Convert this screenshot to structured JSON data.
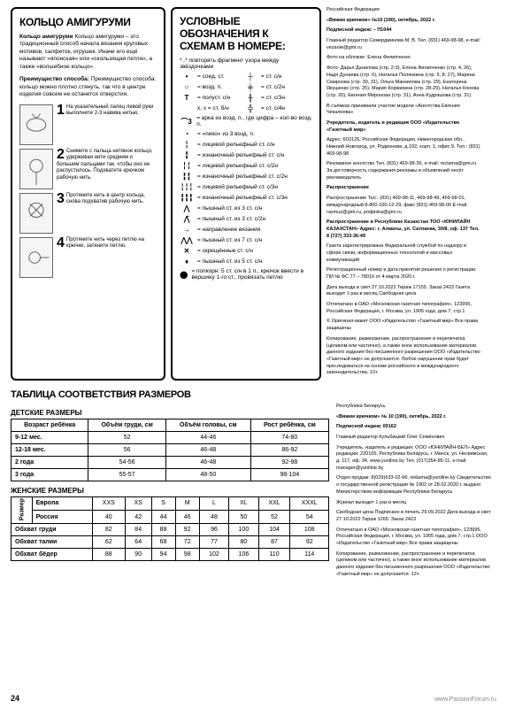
{
  "ring": {
    "title": "КОЛЬЦО АМИГУРУМИ",
    "intro1": "Кольцо амигуруми – это традиционный способ начала вязания круговых мотивов, салфеток, игрушек. Иначе его ещё называют «японская» или «скользящая петля», а также «волшебное кольцо».",
    "intro2": "Преимущество способа: кольцо можно плотно стянуть, так что в центре изделия совсем не останется отверстия.",
    "s1": "На указательный палец левой руки выполните 2-3 навива нитью.",
    "s2": "Снимите с пальца нитяное кольцо, удерживая нити средним и большим пальцами так, чтобы оно не распустилось. Подхватите крючком рабочую нить.",
    "s3": "Протяните нить в центр кольца, снова подхватив рабочую нить.",
    "s4": "Протяните нить через петлю на крючке, затяните петлю."
  },
  "legend": {
    "title": "УСЛОВНЫЕ ОБОЗНАЧЕНИЯ К СХЕМАМ В НОМЕРЕ:",
    "repeat": "*..* повторять фрагмент узора между звёздочками",
    "r1a": "= соед. ст.",
    "r1b": "= ст. с/н",
    "r2a": "= возд. п.",
    "r2b": "= ст. с/2н",
    "r3a": "= полуст. с/н",
    "r3b": "= ст. с/3н",
    "r4a": "x, v = ст. б/н",
    "r4b": "= ст. с/4н",
    "r5": "= арка из возд. п., где цифра – кол-во возд. п.",
    "r6": "= «пико» из 3 возд. п.",
    "r7": "= лицевой рельефный ст. с/н",
    "r8": "= изнаночный рельефный ст. с/н",
    "r9": "= лицевой рельефный ст. с/2н",
    "r10": "= изнаночный рельефный ст. с/2н",
    "r11": "= лицевой рельефный ст. с/3н",
    "r12": "= изнаночный рельефный ст. с/3н",
    "r13": "= пышный ст. из 3 ст. с/н",
    "r14": "= пышный ст. из 3 ст. с/2н",
    "r15": "= направление вязания",
    "r16": "= пышный ст. из 7 ст. с/н",
    "r17": "= скрещённые ст. с/н",
    "r18": "= пышный ст. из 5 ст. с/н",
    "r19": "= попкорн: 5 ст. с/н в 1 п., крючок ввести в вершину 1-го ст., провязать петлю"
  },
  "pub": {
    "p1": "Российская Федерация",
    "p2": "«Вяжем крючком» №10 (190), октябрь, 2022 г.",
    "p3": "Подписной индекс – П1044",
    "p4": "Главный редактор Семерджинова М. В. Тел. (831) 469-98-98, e-mail: vezanie@gmi.ru",
    "p5": "Фото на обложке: Елена Филипченко",
    "p6": "Фото: Дарья Данилова (стр. 2-3), Елена Филипченко (стр. 4, 26), Надя Дунаева (стр. 6), Наталья Полянкина (стр. 5, 8, 27), Марина Смирнова (стр. 30, 31), Ольга Манкилова (стр. 29), Екатерина Якушенко (стр. 25), Мария Коржихина (стр. 28-29), Наталья Конова (стр. 20), Евгения Миронова (стр. 31), Анна Кудряшова (стр. 31)",
    "p7": "В съёмках принимали участие модели «Агентства Евгения Чекалеева»",
    "p8": "Учредитель, издатель и редакция ООО «Издательство «Газетный мир»",
    "p9": "Адрес: 603126, Российская Федерация, Нижегородская обл., Нижний Новгород, ул. Родионова, д.192, корп. 1, офис 9. Тел.: (831) 469-98-98",
    "p10": "Рекламное агентство Тел. (831) 469-98-36, e-mail: reclama@gmi.ru За достоверность содержания рекламы и объявлений несёт рекламодатель",
    "p11": "Распространение Тел.: (831) 469-98-11, 469-98-49, 469-98-01, международный 8-800-100-12-29, факс (831) 469-98-00 E-mail: razmuz@gmi.ru, podpiska@gmi.ru",
    "p12": "Распространение в Республике Казахстан ТОО «ЮНИЛАЙН КАЗАХСТАН» Адрес: г. Алматы, ул. Сатпаева, 30/8, оф. 137 Тел. 8 (727) 333-36-49",
    "p13": "Газета зарегистрирована Федеральной службой по надзору в сфере связи, информационных технологий и массовых коммуникаций",
    "p14": "Регистрационный номер и дата принятия решения о регистрации: ПИ № ФС 77 – 78016 от 4 марта 2020 г.",
    "p15": "Дата выхода в свет 27.10.2022 Тираж 17155. Заказ 2423 Газета выходит 1 раз в месяц Свободная цена",
    "p16": "Отпечатано в ОАО «Московская газетная типография», 123995, Российская Федерация, г. Москва, ул. 1905 года, дом 7, стр.1",
    "p17": "© Оригинал-макет ООО «Издательство «Газетный мир» Все права защищены",
    "p18": "Копирование, размножение, распространение и перепечатка (целиком или частично), а также иное использование материалов данного издания без письменного разрешения ООО «Издательство «Газетный мир» не допускается. Любое нарушение прав будет преследоваться на основе российского и международного законодательства. 12+"
  },
  "pub2": {
    "p1": "Республика Беларусь",
    "p2": "«Вяжем крючком» № 10 (190), октябрь, 2022 г.",
    "p3": "Подписной индекс 00162",
    "p4": "Главный редактор Кульбицкий Олег Семёнович",
    "p5": "Учредитель, издатель и редакция: ООО «ЮНИЛАЙН-БЕЛ» Адрес редакции: 220105, Республика Беларусь, г. Минск, ул. Несвижская, д. 117, оф. 34, www.yuniline.by Тел. (017)354-85-11, e-mail: manager@yuniline.by",
    "p6": "Отдел продаж: 8(029)633-02-96, reklama@yuniline.by Свидетельство о государственной регистрации № 1902 от 28.02.2020 г. выдано Министерством информации Республики Беларусь",
    "p7": "Журнал выходит 1 раз в месяц",
    "p8": "Свободная цена Подписано в печать 29.09.2022 Дата выхода в свет 27.10.2022 Тираж 1265. Заказ 2423",
    "p9": "Отпечатано в ОАО «Московская газетная типография», 123995, Российская Федерация, г. Москва, ул. 1905 года, дом 7, стр.1 ООО «Издательство «Газетный мир» Все права защищены",
    "p10": "Копирование, размножение, распространение и перепечатка (целиком или частично), а также иное использование материалов данного издания без письменного разрешения ООО «Издательство «Газетный мир» не допускается. 12+"
  },
  "sizes": {
    "title": "ТАБЛИЦА СООТВЕТСТВИЯ РАЗМЕРОВ",
    "kids": {
      "title": "ДЕТСКИЕ РАЗМЕРЫ",
      "headers": [
        "Возраст ребёнка",
        "Объём груди, см",
        "Объём головы, см",
        "Рост ребёнка, см"
      ],
      "rows": [
        [
          "9-12 мес.",
          "52",
          "44-46",
          "74-80"
        ],
        [
          "12-18 мес.",
          "56",
          "46-48",
          "86-92"
        ],
        [
          "2 года",
          "54-56",
          "46-48",
          "92-98"
        ],
        [
          "3 года",
          "55-57",
          "48-50",
          "98-104"
        ]
      ]
    },
    "women": {
      "title": "ЖЕНСКИЕ РАЗМЕРЫ",
      "vhdr": "Размер",
      "eu": [
        "Европа",
        "XXS",
        "XS",
        "S",
        "M",
        "L",
        "XL",
        "XXL",
        "XXXL"
      ],
      "ru": [
        "Россия",
        "40",
        "42",
        "44",
        "46",
        "48",
        "50",
        "52",
        "54"
      ],
      "rows": [
        [
          "Обхват груди",
          "82",
          "84",
          "88",
          "92",
          "96",
          "100",
          "104",
          "108"
        ],
        [
          "Обхват талии",
          "62",
          "64",
          "68",
          "72",
          "77",
          "80",
          "87",
          "92"
        ],
        [
          "Обхват бёдер",
          "88",
          "90",
          "94",
          "98",
          "102",
          "106",
          "110",
          "114"
        ]
      ]
    }
  },
  "pagenum": "24",
  "watermark": "www.PassionForum.ru"
}
